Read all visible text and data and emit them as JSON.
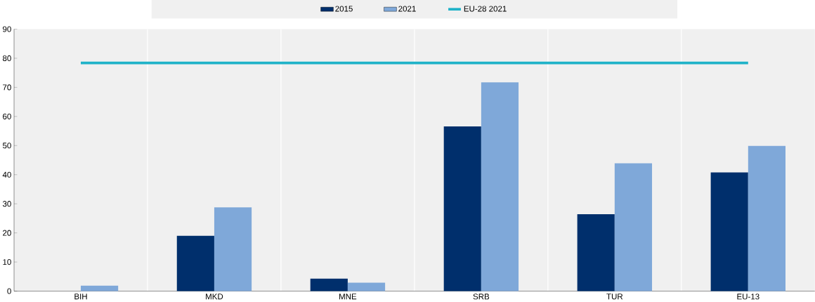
{
  "chart_data": {
    "type": "bar",
    "categories": [
      "BIH",
      "MKD",
      "MNE",
      "SRB",
      "TUR",
      "EU-13"
    ],
    "series": [
      {
        "name": "2015",
        "color": "#002f6c",
        "values": [
          null,
          19,
          4.3,
          56.6,
          26.4,
          40.8
        ]
      },
      {
        "name": "2021",
        "color": "#7fa8d9",
        "values": [
          1.9,
          28.8,
          2.9,
          71.7,
          43.9,
          49.9
        ]
      },
      {
        "name": "EU-28 2021",
        "type": "line",
        "color": "#1fb2c8",
        "values": [
          78.4,
          78.4,
          78.4,
          78.4,
          78.4,
          78.4
        ]
      }
    ],
    "ylim": [
      0,
      90
    ],
    "yticks": [
      0,
      10,
      20,
      30,
      40,
      50,
      60,
      70,
      80,
      90
    ],
    "grid": "x",
    "legend": "top",
    "marker": "none"
  }
}
